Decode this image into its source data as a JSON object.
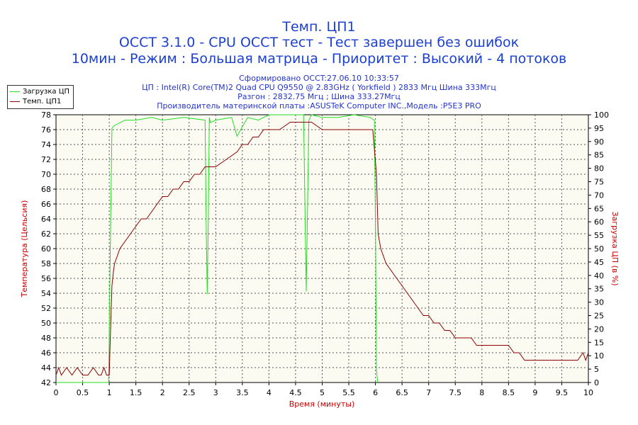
{
  "header": {
    "title_line1": "Темп. ЦП1",
    "title_line2": "OCCT 3.1.0 - CPU OCCT тест - Тест завершен без ошибок",
    "title_line3": "10мин - Режим : Большая матрица - Приоритет : Высокий - 4 потоков",
    "info1": "Сформировано OCCT:27.06.10 10:33:57",
    "info2": "ЦП : Intel(R) Core(TM)2 Quad CPU Q9550 @ 2.83GHz ( Yorkfield ) 2833 Мгц Шина 333Мгц",
    "info3": "Разгон : 2832.75 Мгц ; Шина 333.27Мгц",
    "info4": "Производитель материнской платы :ASUSTeK Computer INC.,Модель :P5E3 PRO"
  },
  "chart_data": {
    "type": "line",
    "xlabel": "Время (минуты)",
    "ylabel": "Температура (Цельсия)",
    "y2label": "Загрузка ЦП (в %)",
    "xlim": [
      0,
      10
    ],
    "ylim": [
      42,
      78
    ],
    "y2lim": [
      0,
      100
    ],
    "grid": true,
    "legend_position": "top-left",
    "colors": {
      "load": "#22dd22",
      "temp": "#8b0000",
      "axis_title": "#cc0000",
      "title": "#1a3fd1"
    },
    "x_ticks": [
      "0",
      "0.5",
      "1",
      "1.5",
      "2",
      "2.5",
      "3",
      "3.5",
      "4",
      "4.5",
      "5",
      "5.5",
      "6",
      "6.5",
      "7",
      "7.5",
      "8",
      "8.5",
      "9",
      "9.5",
      "10"
    ],
    "y_ticks": [
      "42",
      "44",
      "46",
      "48",
      "50",
      "52",
      "54",
      "56",
      "58",
      "60",
      "62",
      "64",
      "66",
      "68",
      "70",
      "72",
      "74",
      "76",
      "78"
    ],
    "y2_ticks": [
      "0",
      "5",
      "10",
      "15",
      "20",
      "25",
      "30",
      "35",
      "40",
      "45",
      "50",
      "55",
      "60",
      "65",
      "70",
      "75",
      "80",
      "85",
      "90",
      "95",
      "100"
    ],
    "series": [
      {
        "name": "Загрузка ЦП",
        "axis": "right",
        "x": [
          0,
          0.99,
          1.02,
          1.05,
          1.1,
          1.2,
          1.3,
          1.5,
          1.8,
          2.0,
          2.4,
          2.8,
          2.82,
          2.84,
          2.86,
          2.88,
          2.9,
          3.0,
          3.3,
          3.4,
          3.6,
          3.8,
          4.0,
          4.3,
          4.5,
          4.65,
          4.68,
          4.7,
          4.72,
          4.75,
          4.8,
          5.0,
          5.3,
          5.6,
          5.9,
          5.98,
          6.0,
          6.02,
          6.04
        ],
        "values": [
          0,
          0,
          50,
          95,
          96,
          97,
          98,
          98,
          99,
          98,
          99,
          98,
          60,
          33,
          60,
          99,
          97,
          98,
          99,
          92,
          99,
          98,
          100,
          100,
          100,
          100,
          60,
          34,
          60,
          98,
          100,
          99,
          99,
          100,
          99,
          98,
          60,
          5,
          0
        ]
      },
      {
        "name": "Темп. ЦП1",
        "axis": "left",
        "x": [
          0,
          0.05,
          0.1,
          0.2,
          0.3,
          0.4,
          0.5,
          0.6,
          0.7,
          0.8,
          0.85,
          0.9,
          0.95,
          1.0,
          1.02,
          1.05,
          1.08,
          1.1,
          1.15,
          1.2,
          1.3,
          1.4,
          1.5,
          1.6,
          1.7,
          1.8,
          1.9,
          2.0,
          2.1,
          2.2,
          2.3,
          2.4,
          2.5,
          2.6,
          2.7,
          2.8,
          2.9,
          3.0,
          3.2,
          3.4,
          3.5,
          3.6,
          3.7,
          3.8,
          3.9,
          4.0,
          4.2,
          4.4,
          4.6,
          4.8,
          5.0,
          5.2,
          5.4,
          5.6,
          5.8,
          5.95,
          6.02,
          6.05,
          6.1,
          6.2,
          6.3,
          6.4,
          6.5,
          6.6,
          6.7,
          6.8,
          6.9,
          7.0,
          7.1,
          7.2,
          7.3,
          7.4,
          7.5,
          7.6,
          7.7,
          7.8,
          7.9,
          8.0,
          8.2,
          8.4,
          8.5,
          8.6,
          8.7,
          8.8,
          8.9,
          9.0,
          9.2,
          9.4,
          9.6,
          9.8,
          9.9,
          9.95,
          10.0
        ],
        "values": [
          43,
          44,
          43,
          44,
          43,
          44,
          43,
          43,
          44,
          43,
          43,
          44,
          43,
          43,
          48,
          55,
          57,
          58,
          59,
          60,
          61,
          62,
          63,
          64,
          64,
          65,
          66,
          67,
          67,
          68,
          68,
          69,
          69,
          70,
          70,
          71,
          71,
          71,
          72,
          73,
          74,
          74,
          75,
          75,
          76,
          76,
          76,
          77,
          77,
          77,
          76,
          76,
          76,
          76,
          76,
          76,
          70,
          62,
          60,
          58,
          57,
          56,
          55,
          54,
          53,
          52,
          51,
          51,
          50,
          50,
          49,
          49,
          48,
          48,
          48,
          48,
          47,
          47,
          47,
          47,
          47,
          46,
          46,
          45,
          45,
          45,
          45,
          45,
          45,
          45,
          46,
          45,
          46
        ]
      }
    ]
  }
}
